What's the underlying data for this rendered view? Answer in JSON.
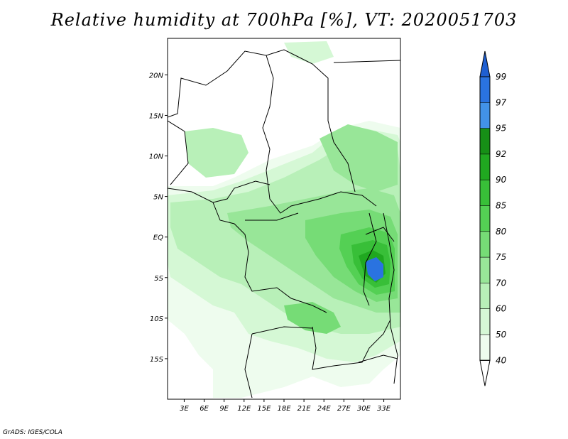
{
  "title": "Relative humidity at 700hPa [%], VT: 2020051703",
  "credit": "GrADS: IGES/COLA",
  "map": {
    "lon_range": [
      0.5,
      35.5
    ],
    "lat_range": [
      -20,
      24.5
    ],
    "lat_ticks": [
      "20N",
      "15N",
      "10N",
      "5N",
      "EQ",
      "5S",
      "10S",
      "15S"
    ],
    "lon_ticks": [
      "3E",
      "6E",
      "9E",
      "12E",
      "15E",
      "18E",
      "21E",
      "24E",
      "27E",
      "30E",
      "33E"
    ]
  },
  "colorbar": {
    "levels": [
      "99",
      "97",
      "95",
      "92",
      "90",
      "85",
      "80",
      "75",
      "70",
      "60",
      "50",
      "40"
    ],
    "colors": [
      "#1f5fd1",
      "#2a73e0",
      "#4292e8",
      "#168f16",
      "#20a820",
      "#38bf38",
      "#54d054",
      "#76dc76",
      "#98e698",
      "#b8f0b8",
      "#d5f8d5",
      "#eefcee",
      "#ffffff"
    ]
  }
}
